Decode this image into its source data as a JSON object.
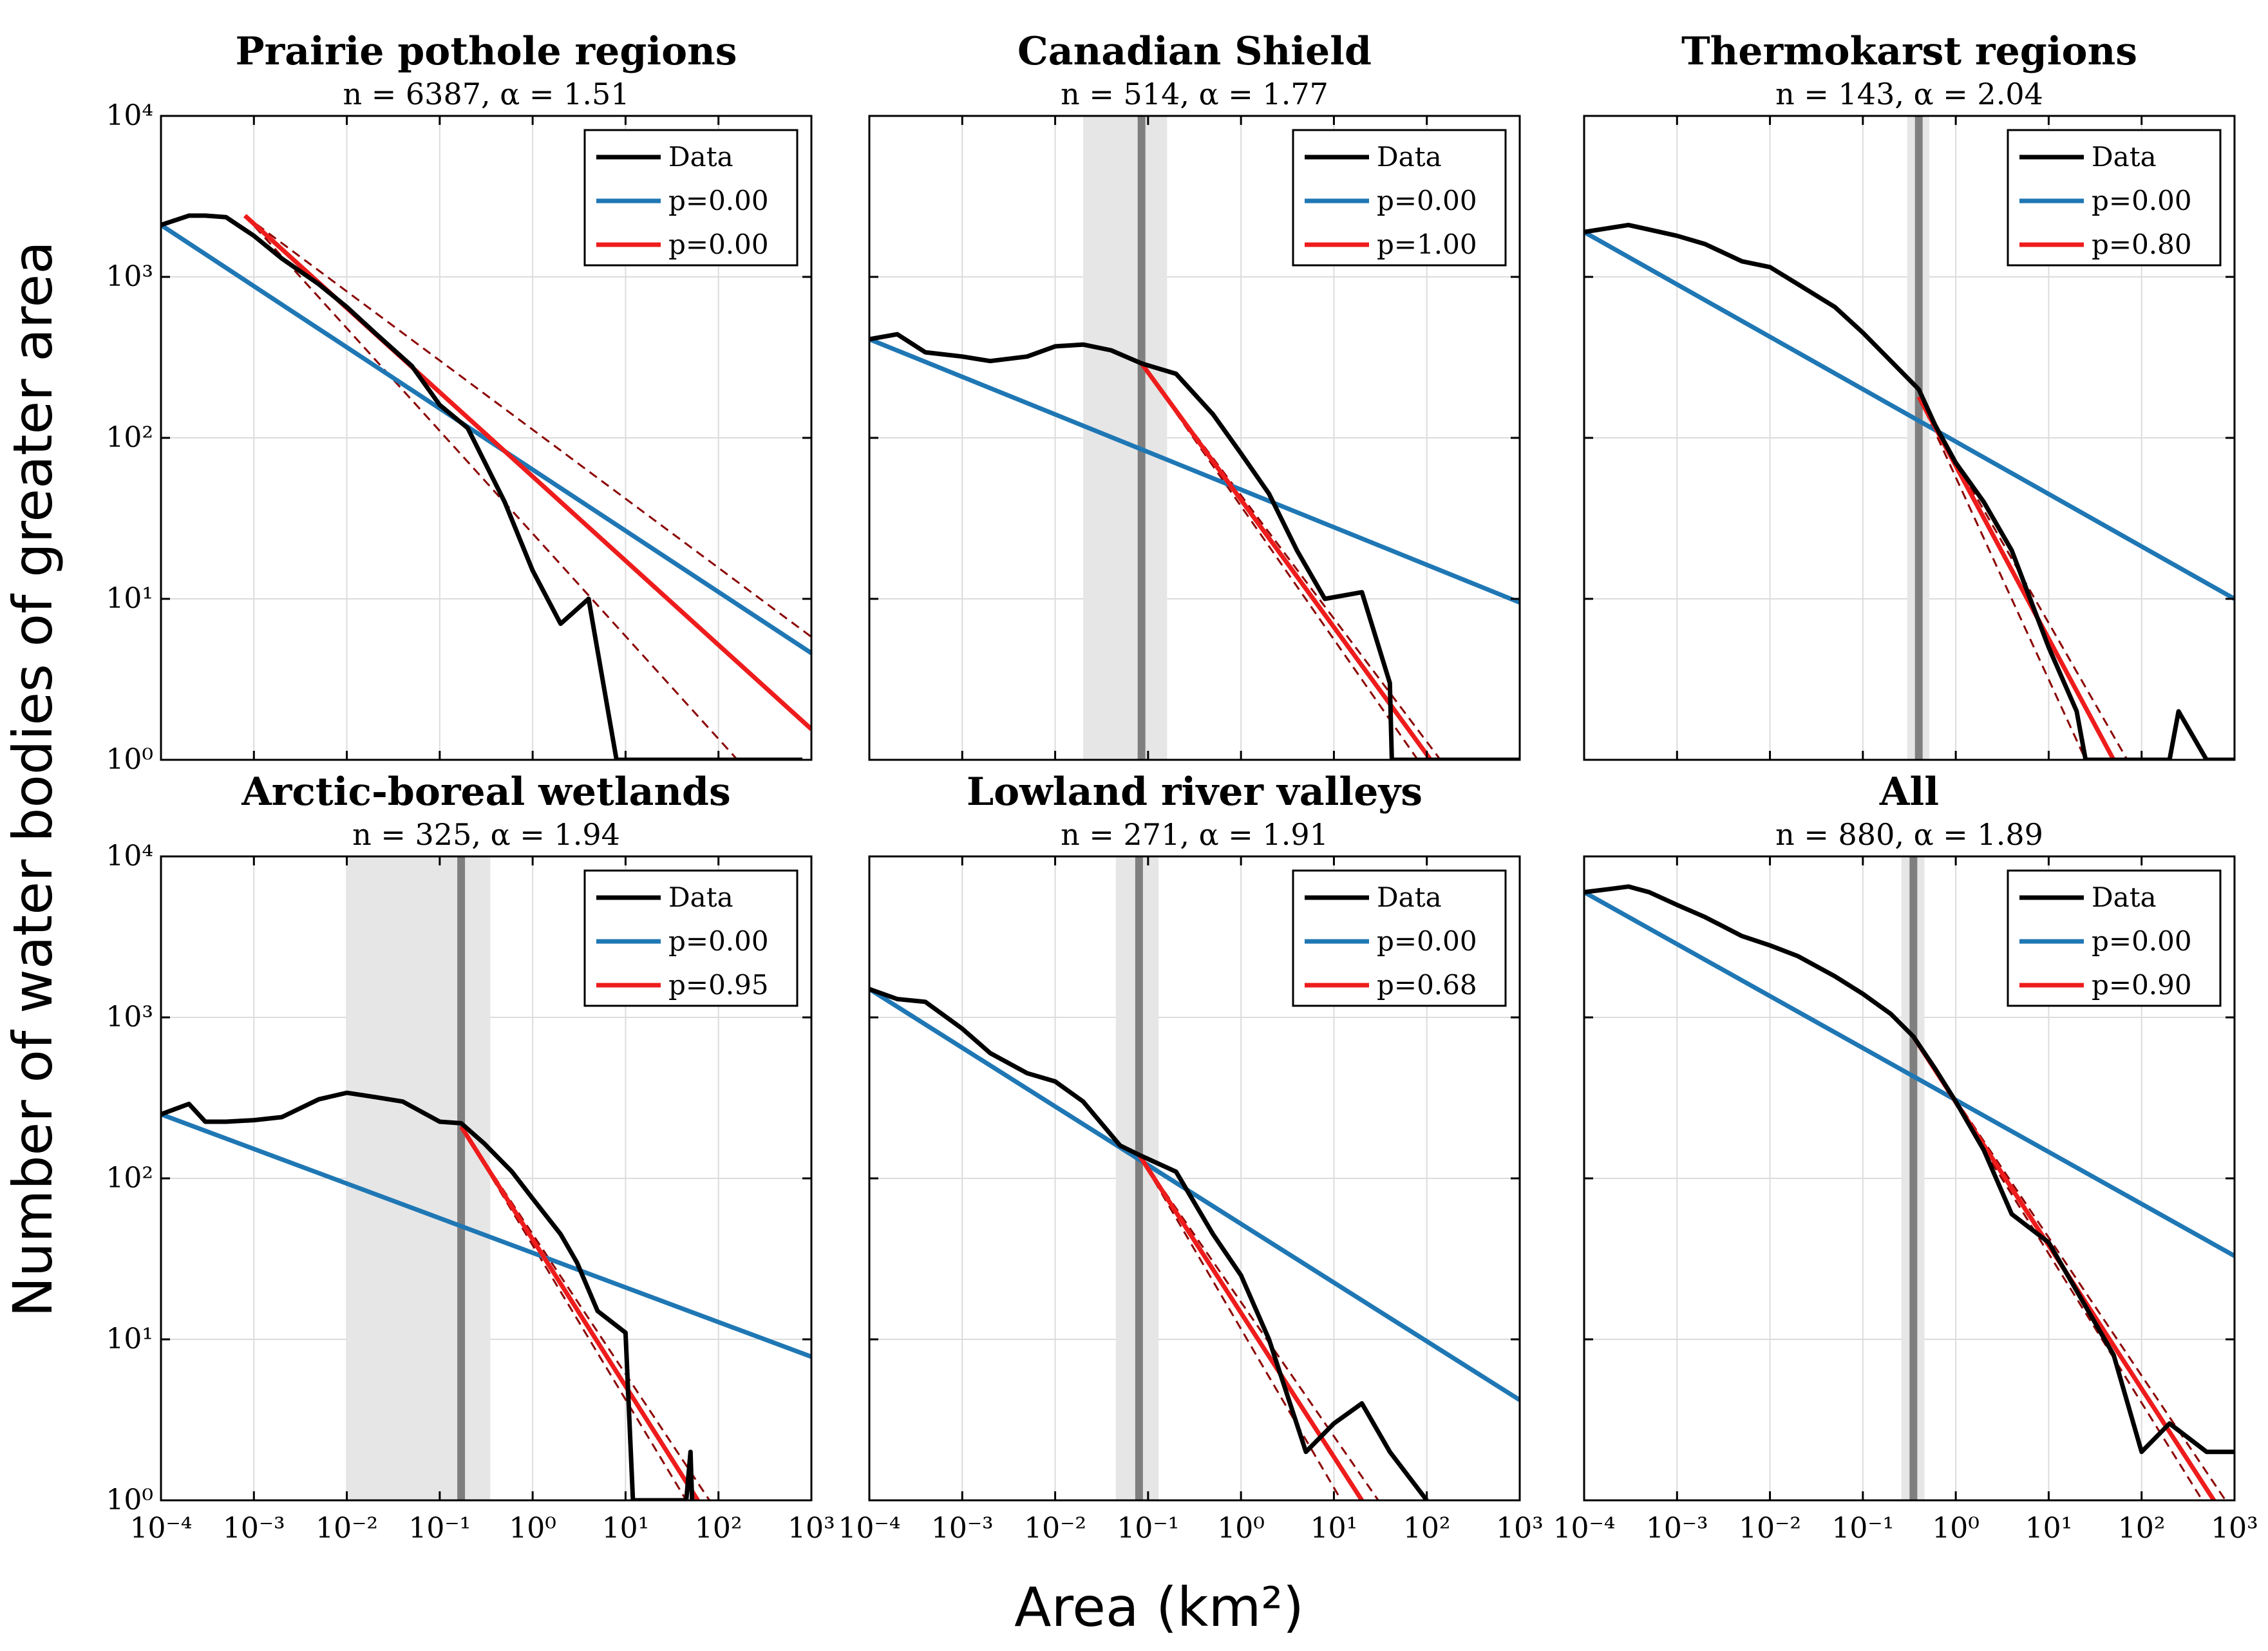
{
  "figure": {
    "ylabel": "Number of water bodies of greater area",
    "xlabel": "Area (km²)"
  },
  "colors": {
    "data": "#000000",
    "blue_fit": "#1f77b4",
    "red_fit": "#ee1c1c",
    "ci": "#8b0000",
    "threshold_line": "#7f7f7f",
    "threshold_band": "#e6e6e6"
  },
  "chart_data": [
    {
      "type": "line",
      "title": "Prairie pothole regions",
      "subtitle": "n = 6387, α = 1.51",
      "xscale": "log",
      "yscale": "log",
      "xlim": [
        0.0001,
        1000
      ],
      "ylim": [
        1,
        10000
      ],
      "xticks": [
        "10⁻⁴",
        "10⁻³",
        "10⁻²",
        "10⁻¹",
        "10⁰",
        "10¹",
        "10²",
        "10³"
      ],
      "yticks": [
        "10⁰",
        "10¹",
        "10²",
        "10³",
        "10⁴"
      ],
      "show_xtick_labels": false,
      "grid": true,
      "legend": {
        "position": "top-right",
        "entries": [
          "Data",
          "p=0.00",
          "p=0.00"
        ]
      },
      "threshold": null,
      "series": [
        {
          "name": "Data",
          "x": [
            0.0001,
            0.0002,
            0.0003,
            0.0005,
            0.001,
            0.002,
            0.005,
            0.01,
            0.02,
            0.05,
            0.1,
            0.2,
            0.5,
            1,
            2,
            4,
            8,
            15,
            25,
            50,
            100,
            200,
            800
          ],
          "y": [
            2100,
            2400,
            2400,
            2350,
            1800,
            1300,
            900,
            650,
            450,
            280,
            160,
            115,
            40,
            15,
            7,
            10,
            1,
            1,
            1,
            1,
            1,
            1,
            1
          ]
        },
        {
          "name": "p=0.00",
          "x": [
            0.0001,
            1000
          ],
          "y": [
            2100,
            4.6
          ]
        },
        {
          "name": "p=0.00",
          "x": [
            0.0008,
            1000
          ],
          "y": [
            2400,
            1.55
          ]
        },
        {
          "x": [
            0.0008,
            1000
          ],
          "y": [
            2400,
            5.8
          ]
        },
        {
          "x": [
            0.0008,
            160
          ],
          "y": [
            2400,
            1
          ]
        }
      ]
    },
    {
      "type": "line",
      "title": "Canadian Shield",
      "subtitle": "n = 514, α = 1.77",
      "xscale": "log",
      "yscale": "log",
      "xlim": [
        0.0001,
        1000
      ],
      "ylim": [
        1,
        10000
      ],
      "xticks": [
        "10⁻⁴",
        "10⁻³",
        "10⁻²",
        "10⁻¹",
        "10⁰",
        "10¹",
        "10²",
        "10³"
      ],
      "yticks": [
        "10⁰",
        "10¹",
        "10²",
        "10³",
        "10⁴"
      ],
      "show_xtick_labels": false,
      "grid": true,
      "legend": {
        "position": "top-right",
        "entries": [
          "Data",
          "p=0.00",
          "p=1.00"
        ]
      },
      "threshold": {
        "x": 0.085,
        "band": [
          0.02,
          0.16
        ]
      },
      "series": [
        {
          "name": "Data",
          "x": [
            0.0001,
            0.0002,
            0.0004,
            0.001,
            0.002,
            0.005,
            0.01,
            0.02,
            0.04,
            0.085,
            0.2,
            0.5,
            1,
            2,
            4,
            8,
            20,
            40,
            42,
            50,
            200,
            500,
            1000
          ],
          "y": [
            410,
            440,
            340,
            320,
            300,
            320,
            370,
            380,
            350,
            290,
            250,
            140,
            80,
            45,
            20,
            10,
            11,
            3,
            1,
            1,
            1,
            1,
            1
          ]
        },
        {
          "name": "p=0.00",
          "x": [
            0.0001,
            1000
          ],
          "y": [
            410,
            9.5
          ]
        },
        {
          "name": "p=1.00",
          "x": [
            0.085,
            110
          ],
          "y": [
            290,
            1
          ]
        },
        {
          "x": [
            0.085,
            140
          ],
          "y": [
            290,
            1
          ]
        },
        {
          "x": [
            0.085,
            80
          ],
          "y": [
            290,
            1
          ]
        }
      ]
    },
    {
      "type": "line",
      "title": "Thermokarst regions",
      "subtitle": "n = 143, α = 2.04",
      "xscale": "log",
      "yscale": "log",
      "xlim": [
        0.0001,
        1000
      ],
      "ylim": [
        1,
        10000
      ],
      "xticks": [
        "10⁻⁴",
        "10⁻³",
        "10⁻²",
        "10⁻¹",
        "10⁰",
        "10¹",
        "10²",
        "10³"
      ],
      "yticks": [
        "10⁰",
        "10¹",
        "10²",
        "10³",
        "10⁴"
      ],
      "show_xtick_labels": false,
      "grid": true,
      "legend": {
        "position": "top-right",
        "entries": [
          "Data",
          "p=0.00",
          "p=0.80"
        ]
      },
      "threshold": {
        "x": 0.4,
        "band": [
          0.3,
          0.52
        ]
      },
      "series": [
        {
          "name": "Data",
          "x": [
            0.0001,
            0.0003,
            0.001,
            0.002,
            0.005,
            0.01,
            0.02,
            0.05,
            0.1,
            0.2,
            0.4,
            0.6,
            1,
            2,
            4,
            10,
            20,
            25,
            200,
            250,
            500,
            1000
          ],
          "y": [
            1900,
            2100,
            1800,
            1600,
            1250,
            1150,
            900,
            650,
            450,
            300,
            200,
            120,
            70,
            40,
            20,
            5,
            2,
            1,
            1,
            2,
            1,
            1
          ]
        },
        {
          "name": "p=0.00",
          "x": [
            0.0001,
            1000
          ],
          "y": [
            1900,
            10
          ]
        },
        {
          "name": "p=0.80",
          "x": [
            0.4,
            50
          ],
          "y": [
            180,
            1
          ]
        },
        {
          "x": [
            0.4,
            70
          ],
          "y": [
            180,
            1
          ]
        },
        {
          "x": [
            0.4,
            25
          ],
          "y": [
            180,
            1
          ]
        }
      ]
    },
    {
      "type": "line",
      "title": "Arctic-boreal wetlands",
      "subtitle": "n = 325, α = 1.94",
      "xscale": "log",
      "yscale": "log",
      "xlim": [
        0.0001,
        1000
      ],
      "ylim": [
        1,
        10000
      ],
      "xticks": [
        "10⁻⁴",
        "10⁻³",
        "10⁻²",
        "10⁻¹",
        "10⁰",
        "10¹",
        "10²",
        "10³"
      ],
      "yticks": [
        "10⁰",
        "10¹",
        "10²",
        "10³",
        "10⁴"
      ],
      "show_xtick_labels": true,
      "grid": true,
      "legend": {
        "position": "top-right",
        "entries": [
          "Data",
          "p=0.00",
          "p=0.95"
        ]
      },
      "threshold": {
        "x": 0.17,
        "band": [
          0.01,
          0.35
        ]
      },
      "series": [
        {
          "name": "Data",
          "x": [
            0.0001,
            0.0002,
            0.0003,
            0.0005,
            0.001,
            0.002,
            0.005,
            0.01,
            0.02,
            0.04,
            0.1,
            0.17,
            0.3,
            0.6,
            1,
            2,
            3,
            5,
            10,
            12,
            45,
            50,
            52
          ],
          "y": [
            250,
            290,
            225,
            225,
            230,
            240,
            310,
            340,
            320,
            300,
            225,
            220,
            165,
            110,
            75,
            45,
            30,
            15,
            11,
            1,
            1,
            2,
            1
          ]
        },
        {
          "name": "p=0.00",
          "x": [
            0.0001,
            1000
          ],
          "y": [
            250,
            7.8
          ]
        },
        {
          "name": "p=0.95",
          "x": [
            0.17,
            60
          ],
          "y": [
            210,
            1
          ]
        },
        {
          "x": [
            0.17,
            80
          ],
          "y": [
            210,
            1
          ]
        },
        {
          "x": [
            0.17,
            45
          ],
          "y": [
            210,
            1
          ]
        }
      ]
    },
    {
      "type": "line",
      "title": "Lowland river valleys",
      "subtitle": "n = 271, α = 1.91",
      "xscale": "log",
      "yscale": "log",
      "xlim": [
        0.0001,
        1000
      ],
      "ylim": [
        1,
        10000
      ],
      "xticks": [
        "10⁻⁴",
        "10⁻³",
        "10⁻²",
        "10⁻¹",
        "10⁰",
        "10¹",
        "10²",
        "10³"
      ],
      "yticks": [
        "10⁰",
        "10¹",
        "10²",
        "10³",
        "10⁴"
      ],
      "show_xtick_labels": true,
      "grid": true,
      "legend": {
        "position": "top-right",
        "entries": [
          "Data",
          "p=0.00",
          "p=0.68"
        ]
      },
      "threshold": {
        "x": 0.08,
        "band": [
          0.045,
          0.13
        ]
      },
      "series": [
        {
          "name": "Data",
          "x": [
            0.0001,
            0.0002,
            0.0004,
            0.001,
            0.002,
            0.005,
            0.01,
            0.02,
            0.05,
            0.08,
            0.2,
            0.5,
            1,
            2,
            5,
            10,
            20,
            40,
            100
          ],
          "y": [
            1500,
            1300,
            1250,
            850,
            600,
            450,
            400,
            300,
            160,
            140,
            110,
            45,
            25,
            10,
            2,
            3,
            4,
            2,
            1
          ]
        },
        {
          "name": "p=0.00",
          "x": [
            0.0001,
            1000
          ],
          "y": [
            1500,
            4.2
          ]
        },
        {
          "name": "p=0.68",
          "x": [
            0.08,
            20
          ],
          "y": [
            140,
            1
          ]
        },
        {
          "x": [
            0.08,
            30
          ],
          "y": [
            140,
            1
          ]
        },
        {
          "x": [
            0.08,
            12
          ],
          "y": [
            140,
            1
          ]
        }
      ]
    },
    {
      "type": "line",
      "title": "All",
      "subtitle": "n = 880, α = 1.89",
      "xscale": "log",
      "yscale": "log",
      "xlim": [
        0.0001,
        1000
      ],
      "ylim": [
        1,
        10000
      ],
      "xticks": [
        "10⁻⁴",
        "10⁻³",
        "10⁻²",
        "10⁻¹",
        "10⁰",
        "10¹",
        "10²",
        "10³"
      ],
      "yticks": [
        "10⁰",
        "10¹",
        "10²",
        "10³",
        "10⁴"
      ],
      "show_xtick_labels": true,
      "grid": true,
      "legend": {
        "position": "top-right",
        "entries": [
          "Data",
          "p=0.00",
          "p=0.90"
        ]
      },
      "threshold": {
        "x": 0.35,
        "band": [
          0.26,
          0.46
        ]
      },
      "series": [
        {
          "name": "Data",
          "x": [
            0.0001,
            0.0002,
            0.0003,
            0.0005,
            0.001,
            0.002,
            0.005,
            0.01,
            0.02,
            0.05,
            0.1,
            0.2,
            0.35,
            0.6,
            1,
            2,
            4,
            10,
            20,
            50,
            100,
            200,
            500,
            1000
          ],
          "y": [
            6000,
            6300,
            6500,
            6000,
            5000,
            4200,
            3200,
            2800,
            2400,
            1800,
            1400,
            1050,
            760,
            480,
            300,
            150,
            60,
            40,
            20,
            8,
            2,
            3,
            2,
            2
          ]
        },
        {
          "name": "p=0.00",
          "x": [
            0.0001,
            1000
          ],
          "y": [
            6000,
            33
          ]
        },
        {
          "name": "p=0.90",
          "x": [
            0.35,
            600
          ],
          "y": [
            760,
            1
          ]
        },
        {
          "x": [
            0.35,
            800
          ],
          "y": [
            760,
            1
          ]
        },
        {
          "x": [
            0.35,
            450
          ],
          "y": [
            760,
            1
          ]
        }
      ]
    }
  ]
}
